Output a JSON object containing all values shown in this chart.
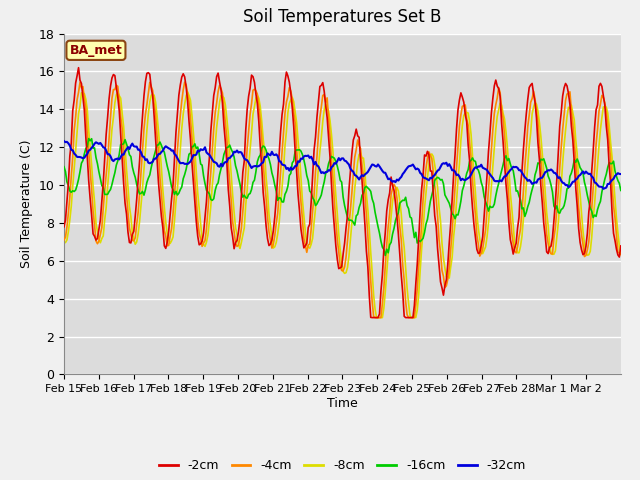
{
  "title": "Soil Temperatures Set B",
  "xlabel": "Time",
  "ylabel": "Soil Temperature (C)",
  "ylim": [
    0,
    18
  ],
  "yticks": [
    0,
    2,
    4,
    6,
    8,
    10,
    12,
    14,
    16,
    18
  ],
  "x_labels": [
    "Feb 15",
    "Feb 16",
    "Feb 17",
    "Feb 18",
    "Feb 19",
    "Feb 20",
    "Feb 21",
    "Feb 22",
    "Feb 23",
    "Feb 24",
    "Feb 25",
    "Feb 26",
    "Feb 27",
    "Feb 28",
    "Mar 1",
    "Mar 2"
  ],
  "series": {
    "-2cm": {
      "color": "#dd0000",
      "lw": 1.2
    },
    "-4cm": {
      "color": "#ff8800",
      "lw": 1.2
    },
    "-8cm": {
      "color": "#dddd00",
      "lw": 1.2
    },
    "-16cm": {
      "color": "#00cc00",
      "lw": 1.2
    },
    "-32cm": {
      "color": "#0000dd",
      "lw": 1.5
    }
  },
  "legend_label": "BA_met",
  "background_outer": "#f0f0f0",
  "background_inner": "#dcdcdc",
  "grid_color": "#ffffff",
  "title_fontsize": 12,
  "figsize": [
    6.4,
    4.8
  ],
  "dpi": 100
}
